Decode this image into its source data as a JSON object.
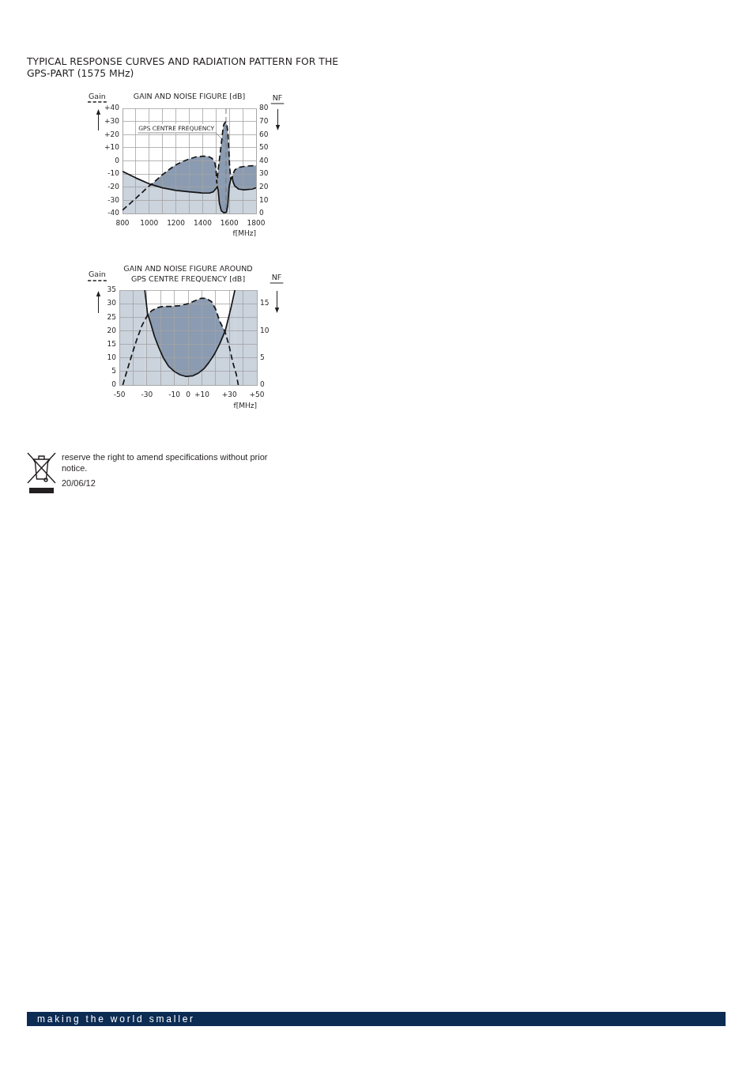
{
  "chart_data": [
    {
      "type": "line",
      "title": "TYPICAL RESPONSE CURVES AND RADIATION PATTERN FOR THE GPS-PART (1575 MHz)",
      "subtitle": "GAIN AND NOISE FIGURE [dB]",
      "xlabel": "f[MHz]",
      "ylabel": "Gain",
      "y2label": "NF",
      "xlim": [
        800,
        1800
      ],
      "xticks": [
        800,
        {
          "value": 900,
          "label": null
        },
        1000,
        {
          "value": 1100,
          "label": null
        },
        1200,
        {
          "value": 1300,
          "label": null
        },
        1400,
        {
          "value": 1500,
          "label": null
        },
        1600,
        {
          "value": 1700,
          "label": null
        },
        1800
      ],
      "ylim": [
        -40,
        40
      ],
      "yticks": [
        -40,
        -30,
        -20,
        -10,
        0,
        {
          "value": 10,
          "label": "+10"
        },
        {
          "value": 20,
          "label": "+20"
        },
        {
          "value": 30,
          "label": "+30"
        },
        {
          "value": 40,
          "label": "+40"
        }
      ],
      "y2lim": [
        0,
        80
      ],
      "y2ticks": [
        0,
        10,
        20,
        30,
        40,
        50,
        60,
        70,
        80
      ],
      "grid": true,
      "legend": false,
      "marker": "none",
      "series": [
        {
          "color": "#151515",
          "line_style": "dashed",
          "x": [
            800,
            900,
            1000,
            1015,
            1100,
            1150,
            1200,
            1250,
            1300,
            1350,
            1400,
            1440,
            1470,
            1490,
            1500,
            1506,
            1515,
            1529,
            1543,
            1554,
            1562,
            1572,
            1582,
            1590,
            1596,
            1602,
            1610,
            1618,
            1621,
            1628,
            1640,
            1667,
            1727,
            1800
          ],
          "values": [
            -37.5,
            -28.5,
            -19,
            -18,
            -10.5,
            -6.5,
            -3,
            -0.5,
            1.5,
            3,
            3.5,
            3.5,
            2,
            -1,
            -6,
            -17,
            -8,
            4,
            16,
            26,
            28.5,
            29.5,
            27.5,
            20,
            8,
            -4,
            -14,
            -13,
            -12.5,
            -10,
            -7,
            -5,
            -4,
            -3.5
          ],
          "lower": [
            null,
            null,
            null,
            -18,
            -20.5,
            -21.5,
            -22.5,
            -23,
            -23.5,
            -24,
            -24.5,
            -24.5,
            -24,
            -22.5,
            -21,
            -20,
            -22,
            -33.5,
            -38.5,
            -39,
            -39.5,
            -39,
            -37,
            -31,
            -23,
            -18,
            -14,
            null,
            -12.5,
            -16,
            -19,
            -21.5,
            -22,
            -20.5
          ],
          "upper": [
            null,
            null,
            null,
            -18,
            -10.5,
            -6.5,
            -3,
            -0.5,
            1.5,
            3,
            3.5,
            3.5,
            2,
            -1,
            -6,
            -17,
            -8,
            4,
            16,
            26,
            28.5,
            29.5,
            27.5,
            20,
            8,
            -4,
            -14,
            null,
            -12.5,
            -10,
            -7,
            -5,
            -4,
            -3.5
          ]
        },
        {
          "type": "area",
          "color": "#cbd3dd",
          "line_style": "solid",
          "axis": "y2",
          "x": [
            800,
            900,
            1000,
            1100,
            1200,
            1300,
            1400,
            1450,
            1480,
            1500,
            1510,
            1517,
            1525,
            1540,
            1558,
            1578,
            1588,
            1598,
            1610,
            1620,
            1628,
            1640,
            1670,
            1710,
            1770,
            1800
          ],
          "values": [
            32,
            27,
            22.5,
            19.5,
            17.5,
            16.5,
            15.5,
            15.5,
            16.5,
            19,
            20.5,
            17,
            8,
            2,
            0.5,
            1,
            6,
            20,
            26,
            28,
            24,
            21,
            18.5,
            18,
            18.5,
            19.5
          ]
        }
      ],
      "ref_lines": [
        {
          "axis": "x",
          "value": 1575,
          "label": "GPS CENTRE FREQUENCY",
          "color": "#7a7a7a",
          "line_style": "dashed"
        }
      ]
    },
    {
      "type": "line",
      "title": "GAIN AND NOISE FIGURE AROUND GPS CENTRE FREQUENCY [dB]",
      "xlabel": "f[MHz]",
      "ylabel": "Gain",
      "y2label": "NF",
      "xlim": [
        -50,
        50
      ],
      "xticks": [
        -50,
        {
          "value": -40,
          "label": null
        },
        -30,
        {
          "value": -20,
          "label": null
        },
        -10,
        0,
        {
          "value": 10,
          "label": "+10"
        },
        {
          "value": 20,
          "label": null
        },
        {
          "value": 30,
          "label": "+30"
        },
        {
          "value": 40,
          "label": null
        },
        {
          "value": 50,
          "label": "+50"
        }
      ],
      "ylim": [
        0,
        35
      ],
      "yticks": [
        0,
        5,
        10,
        15,
        20,
        25,
        30,
        35
      ],
      "y2lim": [
        0,
        17.5
      ],
      "y2ticks": [
        0,
        5,
        10,
        15
      ],
      "grid": true,
      "legend": false,
      "marker": "none",
      "series": [
        {
          "color": "#151515",
          "line_style": "dashed",
          "x": [
            -47.5,
            -44,
            -41,
            -37.5,
            -33.5,
            -30,
            -29.2,
            -26.5,
            -22.5,
            -18,
            -12,
            -6,
            0,
            4.5,
            9.5,
            13,
            17,
            20,
            23,
            26.8,
            29.7,
            32.5,
            35,
            36.5
          ],
          "values": [
            0,
            6,
            11,
            16.5,
            22,
            25.3,
            26,
            27.4,
            28.5,
            29,
            29,
            29.3,
            30,
            31,
            32,
            32,
            30.8,
            28,
            23.5,
            19.7,
            14.7,
            8.3,
            4,
            0
          ],
          "lower": [
            null,
            null,
            null,
            null,
            null,
            null,
            26,
            21.5,
            15.3,
            10,
            5.9,
            3.8,
            3.1,
            3.7,
            5.2,
            6.9,
            9.7,
            12.2,
            15.2,
            19.7,
            null,
            null,
            null,
            null
          ],
          "upper": [
            null,
            null,
            null,
            null,
            null,
            null,
            26,
            27.4,
            28.5,
            29,
            29,
            29.3,
            30,
            31,
            32,
            32,
            30.8,
            28,
            23.5,
            19.7,
            null,
            null,
            null,
            null
          ]
        },
        {
          "type": "area",
          "color": "#cbd3dd",
          "line_style": "solid",
          "axis": "y2",
          "x": [
            -31.5,
            -29.5,
            -27,
            -24.5,
            -21.5,
            -18,
            -14,
            -10,
            -6,
            -2,
            0,
            3.5,
            7.5,
            11.5,
            15,
            19,
            23,
            27,
            29.5,
            31.5,
            34
          ],
          "values": [
            17.5,
            13.2,
            11.2,
            9,
            7,
            5,
            3.4,
            2.5,
            1.9,
            1.6,
            1.6,
            1.7,
            2.2,
            3,
            4.1,
            5.6,
            7.6,
            10,
            12.5,
            14.6,
            17.5
          ]
        }
      ],
      "bands": [
        {
          "axis": "x",
          "from": -50,
          "to": -31.5,
          "color": "#cbd3dd"
        },
        {
          "axis": "x",
          "from": 34,
          "to": 50,
          "color": "#cbd3dd"
        }
      ],
      "annotations": [
        "reserve the right to amend specifications without prior notice.",
        "20/06/12",
        "making the world smaller"
      ]
    }
  ]
}
